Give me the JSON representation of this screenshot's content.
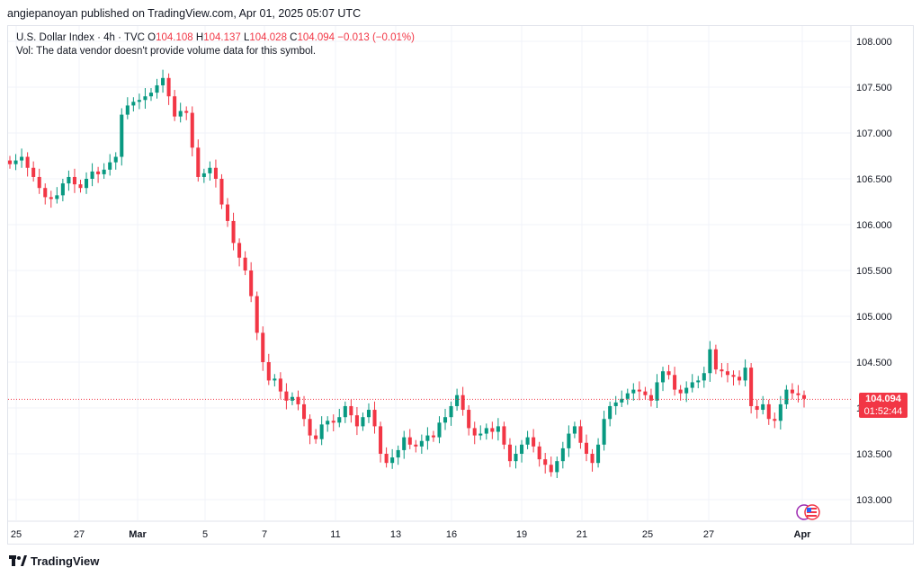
{
  "header": {
    "publisher_text": "angiepanoyan published on TradingView.com, Apr 01, 2025 05:07 UTC"
  },
  "legend": {
    "symbol": "U.S. Dollar Index · 4h · TVC",
    "open_label": "O",
    "open": "104.108",
    "high_label": "H",
    "high": "104.137",
    "low_label": "L",
    "low": "104.028",
    "close_label": "C",
    "close": "104.094",
    "change": "−0.013 (−0.01%)",
    "volume_note": "Vol: The data vendor doesn't provide volume data for this symbol."
  },
  "price_badge": {
    "price": "104.094",
    "countdown": "01:52:44"
  },
  "footer": {
    "brand": "TradingView"
  },
  "colors": {
    "up": "#089981",
    "down": "#f23645",
    "grid": "#f0f3fa",
    "axis_text": "#131722"
  },
  "icons": [
    "tradingview-logo-icon",
    "us-flag-icon"
  ],
  "chart_data": {
    "type": "candlestick",
    "title": "U.S. Dollar Index · 4h · TVC",
    "y_axis": {
      "ticks": [
        "108.000",
        "107.500",
        "107.000",
        "106.500",
        "106.000",
        "105.500",
        "105.000",
        "104.500",
        "104.000",
        "103.500",
        "103.000"
      ],
      "range": [
        102.85,
        108.2
      ],
      "position": "right"
    },
    "x_axis": {
      "tick_labels": [
        "25",
        "27",
        "Mar",
        "5",
        "7",
        "11",
        "13",
        "16",
        "19",
        "21",
        "25",
        "27",
        "Apr"
      ]
    },
    "current_price": 104.094,
    "grid": true,
    "closes": [
      106.66,
      106.7,
      106.74,
      106.62,
      106.52,
      106.4,
      106.3,
      106.28,
      106.32,
      106.45,
      106.52,
      106.44,
      106.4,
      106.5,
      106.58,
      106.55,
      106.6,
      106.68,
      106.74,
      107.2,
      107.3,
      107.34,
      107.36,
      107.4,
      107.44,
      107.52,
      107.6,
      107.4,
      107.18,
      107.24,
      107.22,
      106.84,
      106.52,
      106.56,
      106.62,
      106.5,
      106.22,
      106.04,
      105.8,
      105.64,
      105.5,
      105.22,
      104.82,
      104.5,
      104.3,
      104.32,
      104.18,
      104.08,
      104.12,
      104.04,
      103.88,
      103.7,
      103.66,
      103.82,
      103.86,
      103.84,
      103.9,
      104.02,
      103.92,
      103.8,
      103.9,
      103.98,
      103.8,
      103.5,
      103.4,
      103.46,
      103.54,
      103.68,
      103.6,
      103.58,
      103.64,
      103.7,
      103.68,
      103.84,
      103.9,
      104.02,
      104.14,
      103.98,
      103.78,
      103.7,
      103.72,
      103.78,
      103.74,
      103.8,
      103.6,
      103.42,
      103.5,
      103.6,
      103.68,
      103.58,
      103.44,
      103.38,
      103.3,
      103.42,
      103.56,
      103.72,
      103.8,
      103.62,
      103.5,
      103.4,
      103.6,
      103.88,
      104.02,
      104.06,
      104.1,
      104.16,
      104.2,
      104.18,
      104.14,
      104.08,
      104.28,
      104.4,
      104.36,
      104.2,
      104.16,
      104.22,
      104.28,
      104.3,
      104.38,
      104.64,
      104.42,
      104.4,
      104.36,
      104.34,
      104.3,
      104.44,
      104.02,
      103.98,
      104.04,
      103.88,
      103.86,
      104.04,
      104.2,
      104.16,
      104.14,
      104.1
    ]
  }
}
